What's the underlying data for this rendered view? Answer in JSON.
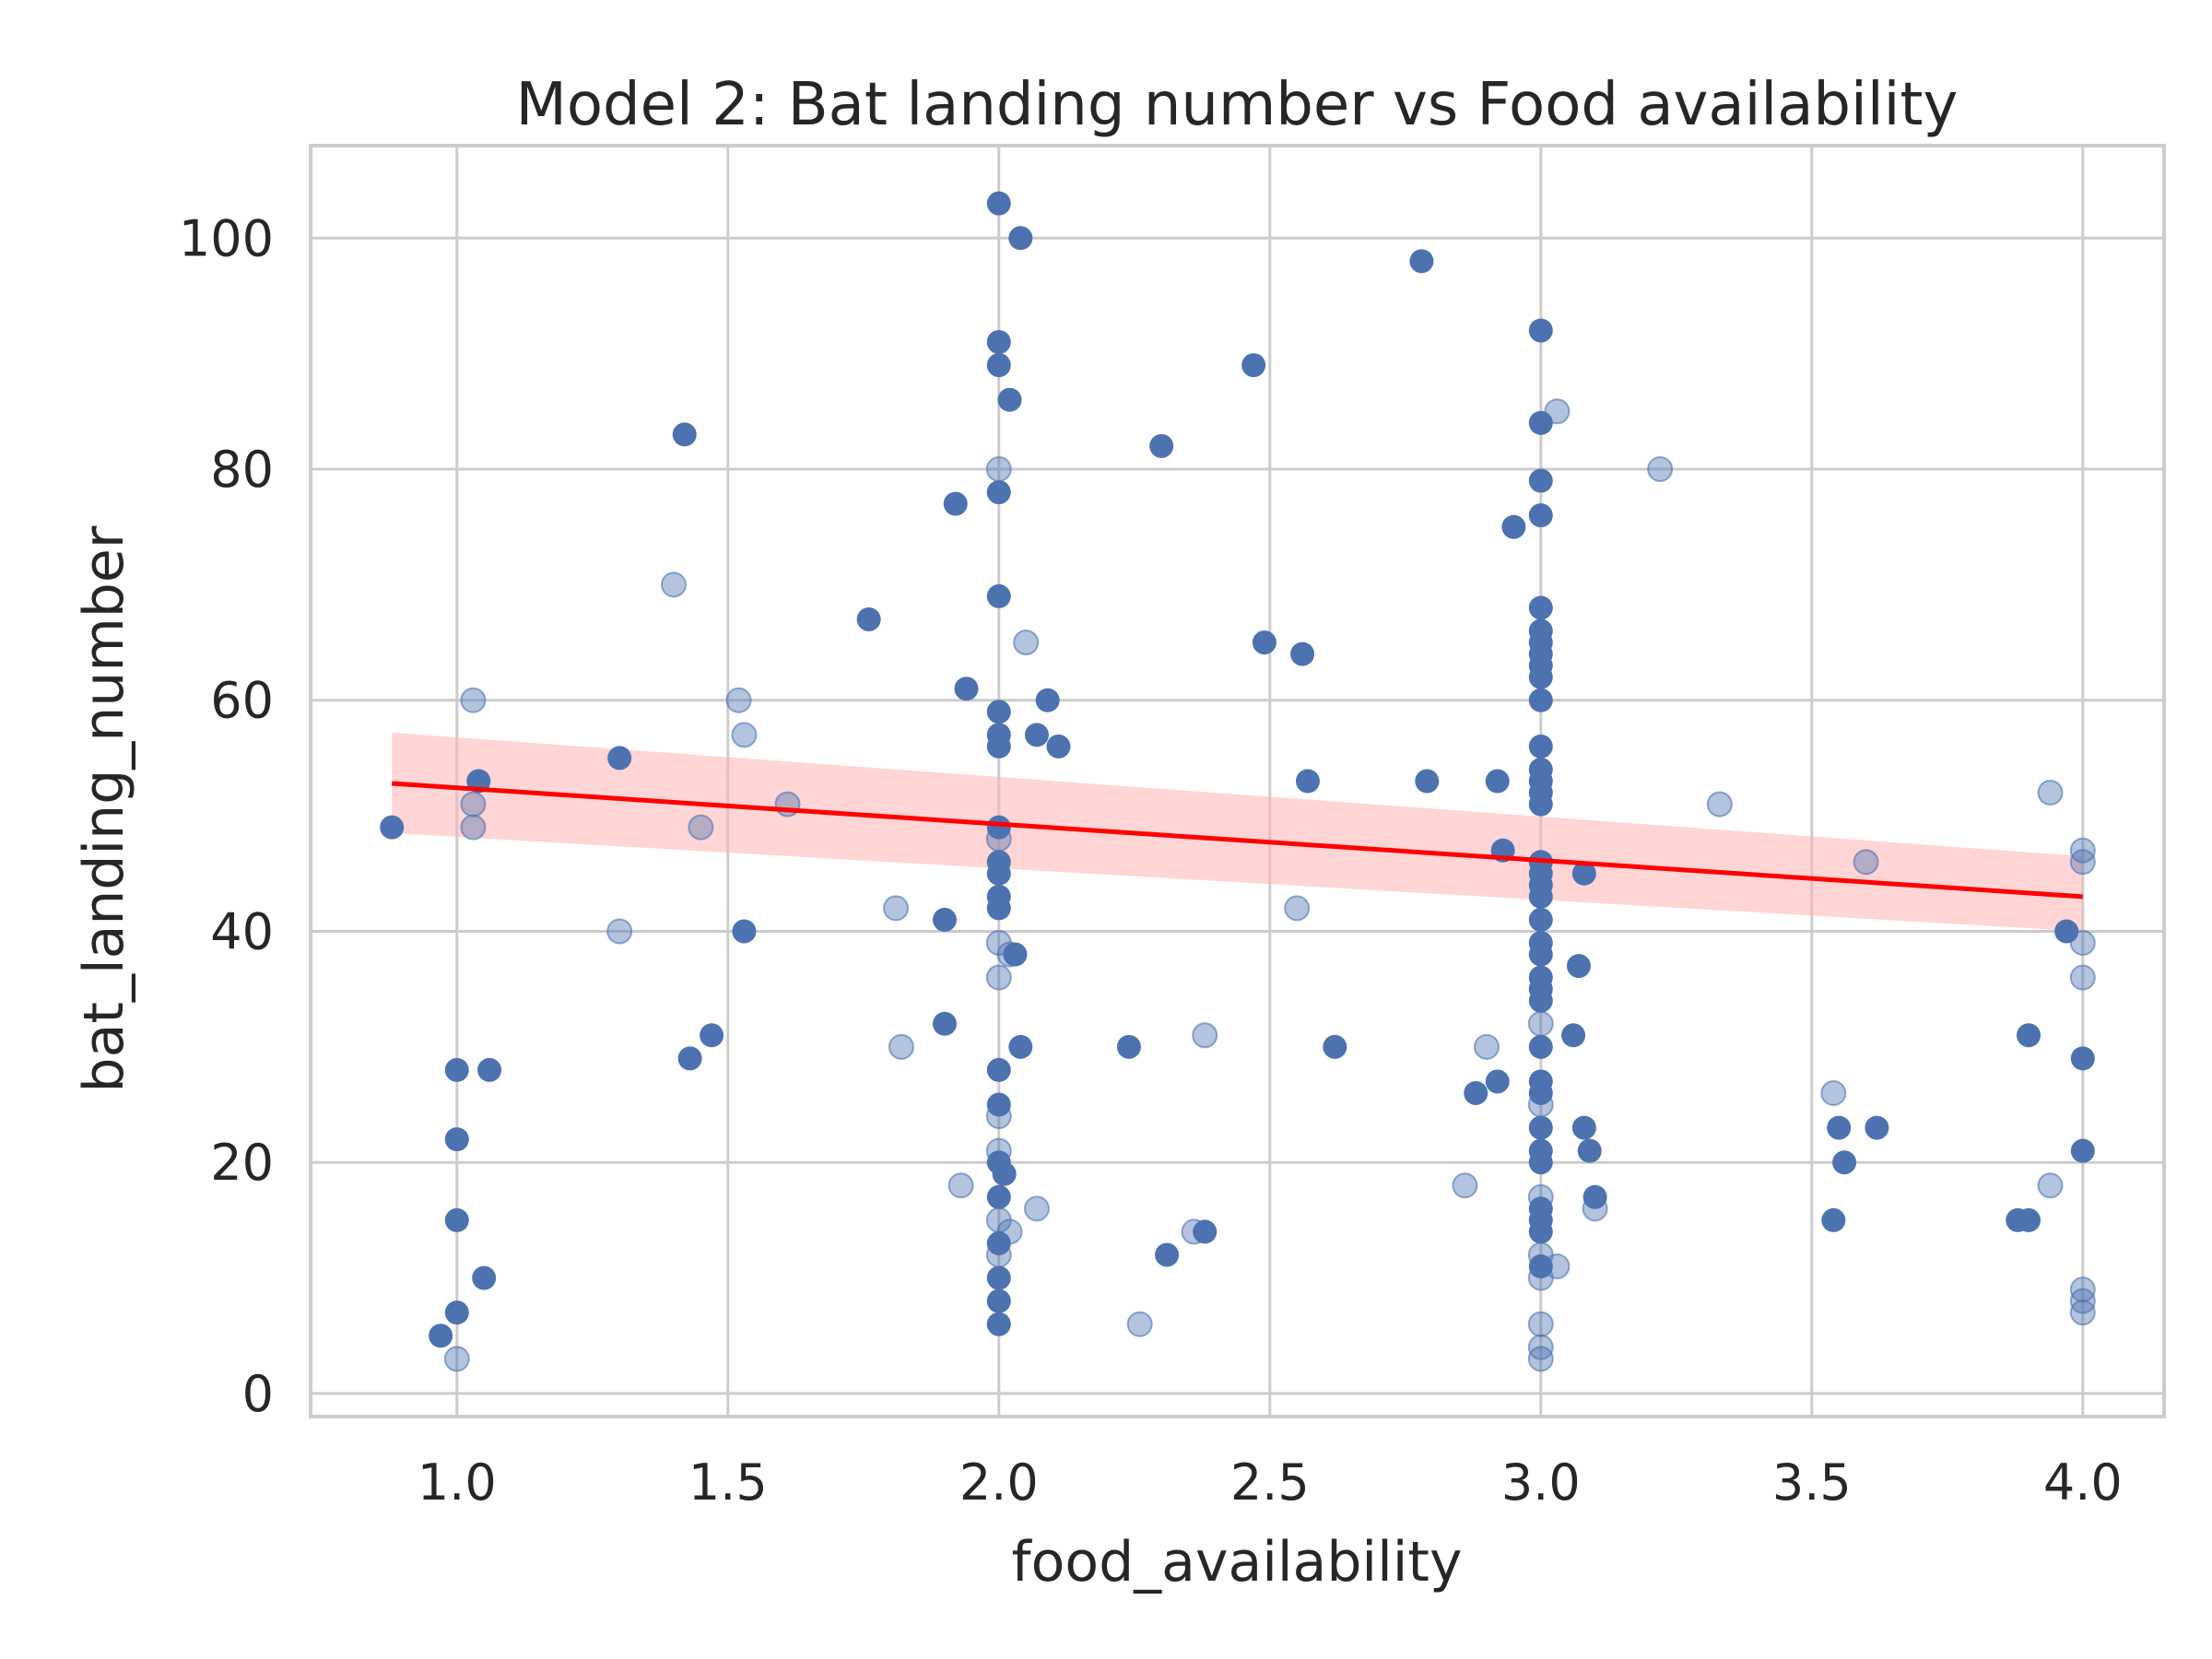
{
  "chart_data": {
    "type": "scatter",
    "title": "Model 2: Bat landing number vs Food availability",
    "xlabel": "food_availability",
    "ylabel": "bat_landing_number",
    "xlim": [
      0.73,
      4.15
    ],
    "ylim": [
      -2,
      108
    ],
    "xticks": [
      1.0,
      1.5,
      2.0,
      2.5,
      3.0,
      3.5,
      4.0
    ],
    "xtick_labels": [
      "1.0",
      "1.5",
      "2.0",
      "2.5",
      "3.0",
      "3.5",
      "4.0"
    ],
    "yticks": [
      0,
      20,
      40,
      60,
      80,
      100
    ],
    "ytick_labels": [
      "0",
      "20",
      "40",
      "60",
      "80",
      "100"
    ],
    "grid": true,
    "point_color": "#4c72b0",
    "line_color": "#ff0000",
    "band_color": "#ffb3b3",
    "regression": {
      "x": [
        0.88,
        4.0
      ],
      "y": [
        52.8,
        43.0
      ],
      "ci_lower": [
        48.5,
        40.0
      ],
      "ci_upper": [
        57.2,
        46.5
      ]
    },
    "series": [
      {
        "style": "solid",
        "points": [
          [
            0.88,
            49
          ],
          [
            1.0,
            28
          ],
          [
            1.0,
            22
          ],
          [
            1.0,
            15
          ],
          [
            1.0,
            7
          ],
          [
            0.97,
            5
          ],
          [
            1.04,
            53
          ],
          [
            1.06,
            28
          ],
          [
            1.05,
            10
          ],
          [
            1.42,
            83
          ],
          [
            1.43,
            29
          ],
          [
            1.47,
            31
          ],
          [
            1.53,
            40
          ],
          [
            1.3,
            55
          ],
          [
            1.76,
            67
          ],
          [
            1.92,
            77
          ],
          [
            1.94,
            61
          ],
          [
            1.9,
            41
          ],
          [
            1.9,
            32
          ],
          [
            2.0,
            103
          ],
          [
            2.04,
            100
          ],
          [
            2.0,
            91
          ],
          [
            2.0,
            89
          ],
          [
            2.02,
            86
          ],
          [
            2.0,
            78
          ],
          [
            2.0,
            69
          ],
          [
            2.0,
            59
          ],
          [
            2.0,
            57
          ],
          [
            2.0,
            56
          ],
          [
            2.0,
            49
          ],
          [
            2.0,
            46
          ],
          [
            2.0,
            45
          ],
          [
            2.0,
            43
          ],
          [
            2.0,
            42
          ],
          [
            2.03,
            38
          ],
          [
            2.0,
            28
          ],
          [
            2.0,
            25
          ],
          [
            2.0,
            20
          ],
          [
            2.01,
            19
          ],
          [
            2.0,
            17
          ],
          [
            2.0,
            13
          ],
          [
            2.0,
            10
          ],
          [
            2.0,
            8
          ],
          [
            2.0,
            6
          ],
          [
            2.09,
            60
          ],
          [
            2.07,
            57
          ],
          [
            2.11,
            56
          ],
          [
            2.04,
            30
          ],
          [
            2.24,
            30
          ],
          [
            2.3,
            82
          ],
          [
            2.31,
            12
          ],
          [
            2.38,
            14
          ],
          [
            2.47,
            89
          ],
          [
            2.49,
            65
          ],
          [
            2.56,
            64
          ],
          [
            2.57,
            53
          ],
          [
            2.62,
            30
          ],
          [
            2.78,
            98
          ],
          [
            2.79,
            53
          ],
          [
            2.88,
            26
          ],
          [
            2.92,
            27
          ],
          [
            2.92,
            53
          ],
          [
            2.93,
            47
          ],
          [
            2.95,
            75
          ],
          [
            3.0,
            92
          ],
          [
            3.0,
            84
          ],
          [
            3.0,
            79
          ],
          [
            3.0,
            76
          ],
          [
            3.0,
            68
          ],
          [
            3.0,
            66
          ],
          [
            3.0,
            65
          ],
          [
            3.0,
            64
          ],
          [
            3.0,
            63
          ],
          [
            3.0,
            62
          ],
          [
            3.0,
            60
          ],
          [
            3.0,
            56
          ],
          [
            3.0,
            54
          ],
          [
            3.0,
            53
          ],
          [
            3.0,
            52
          ],
          [
            3.0,
            51
          ],
          [
            3.0,
            46
          ],
          [
            3.0,
            45
          ],
          [
            3.0,
            44
          ],
          [
            3.0,
            43
          ],
          [
            3.0,
            41
          ],
          [
            3.0,
            39
          ],
          [
            3.0,
            38
          ],
          [
            3.0,
            36
          ],
          [
            3.0,
            35
          ],
          [
            3.0,
            34
          ],
          [
            3.0,
            30
          ],
          [
            3.0,
            27
          ],
          [
            3.0,
            26
          ],
          [
            3.0,
            23
          ],
          [
            3.0,
            21
          ],
          [
            3.0,
            20
          ],
          [
            3.0,
            16
          ],
          [
            3.0,
            15
          ],
          [
            3.0,
            14
          ],
          [
            3.0,
            11
          ],
          [
            3.06,
            31
          ],
          [
            3.07,
            37
          ],
          [
            3.08,
            45
          ],
          [
            3.08,
            23
          ],
          [
            3.09,
            21
          ],
          [
            3.1,
            17
          ],
          [
            3.54,
            15
          ],
          [
            3.55,
            23
          ],
          [
            3.56,
            20
          ],
          [
            3.62,
            23
          ],
          [
            3.88,
            15
          ],
          [
            3.9,
            15
          ],
          [
            3.9,
            31
          ],
          [
            3.97,
            40
          ],
          [
            4.0,
            29
          ],
          [
            4.0,
            21
          ]
        ]
      },
      {
        "style": "faded",
        "points": [
          [
            1.0,
            3
          ],
          [
            1.03,
            60
          ],
          [
            1.03,
            51
          ],
          [
            1.03,
            49
          ],
          [
            1.3,
            40
          ],
          [
            1.4,
            70
          ],
          [
            1.45,
            49
          ],
          [
            1.52,
            60
          ],
          [
            1.53,
            57
          ],
          [
            1.61,
            51
          ],
          [
            1.81,
            42
          ],
          [
            1.82,
            30
          ],
          [
            1.93,
            18
          ],
          [
            2.0,
            80
          ],
          [
            2.0,
            48
          ],
          [
            2.0,
            39
          ],
          [
            2.0,
            36
          ],
          [
            2.0,
            24
          ],
          [
            2.0,
            21
          ],
          [
            2.0,
            15
          ],
          [
            2.0,
            12
          ],
          [
            2.02,
            38
          ],
          [
            2.02,
            14
          ],
          [
            2.05,
            65
          ],
          [
            2.07,
            16
          ],
          [
            2.26,
            6
          ],
          [
            2.36,
            14
          ],
          [
            2.38,
            31
          ],
          [
            2.55,
            42
          ],
          [
            2.86,
            18
          ],
          [
            2.9,
            30
          ],
          [
            3.0,
            32
          ],
          [
            3.0,
            25
          ],
          [
            3.0,
            17
          ],
          [
            3.0,
            12
          ],
          [
            3.0,
            10
          ],
          [
            3.0,
            6
          ],
          [
            3.0,
            4
          ],
          [
            3.0,
            3
          ],
          [
            3.03,
            11
          ],
          [
            3.03,
            85
          ],
          [
            3.1,
            16
          ],
          [
            3.22,
            80
          ],
          [
            3.33,
            51
          ],
          [
            3.54,
            26
          ],
          [
            3.6,
            46
          ],
          [
            3.94,
            52
          ],
          [
            3.94,
            18
          ],
          [
            4.0,
            47
          ],
          [
            4.0,
            46
          ],
          [
            4.0,
            39
          ],
          [
            4.0,
            36
          ],
          [
            4.0,
            9
          ],
          [
            4.0,
            8
          ],
          [
            4.0,
            7
          ]
        ]
      }
    ]
  }
}
